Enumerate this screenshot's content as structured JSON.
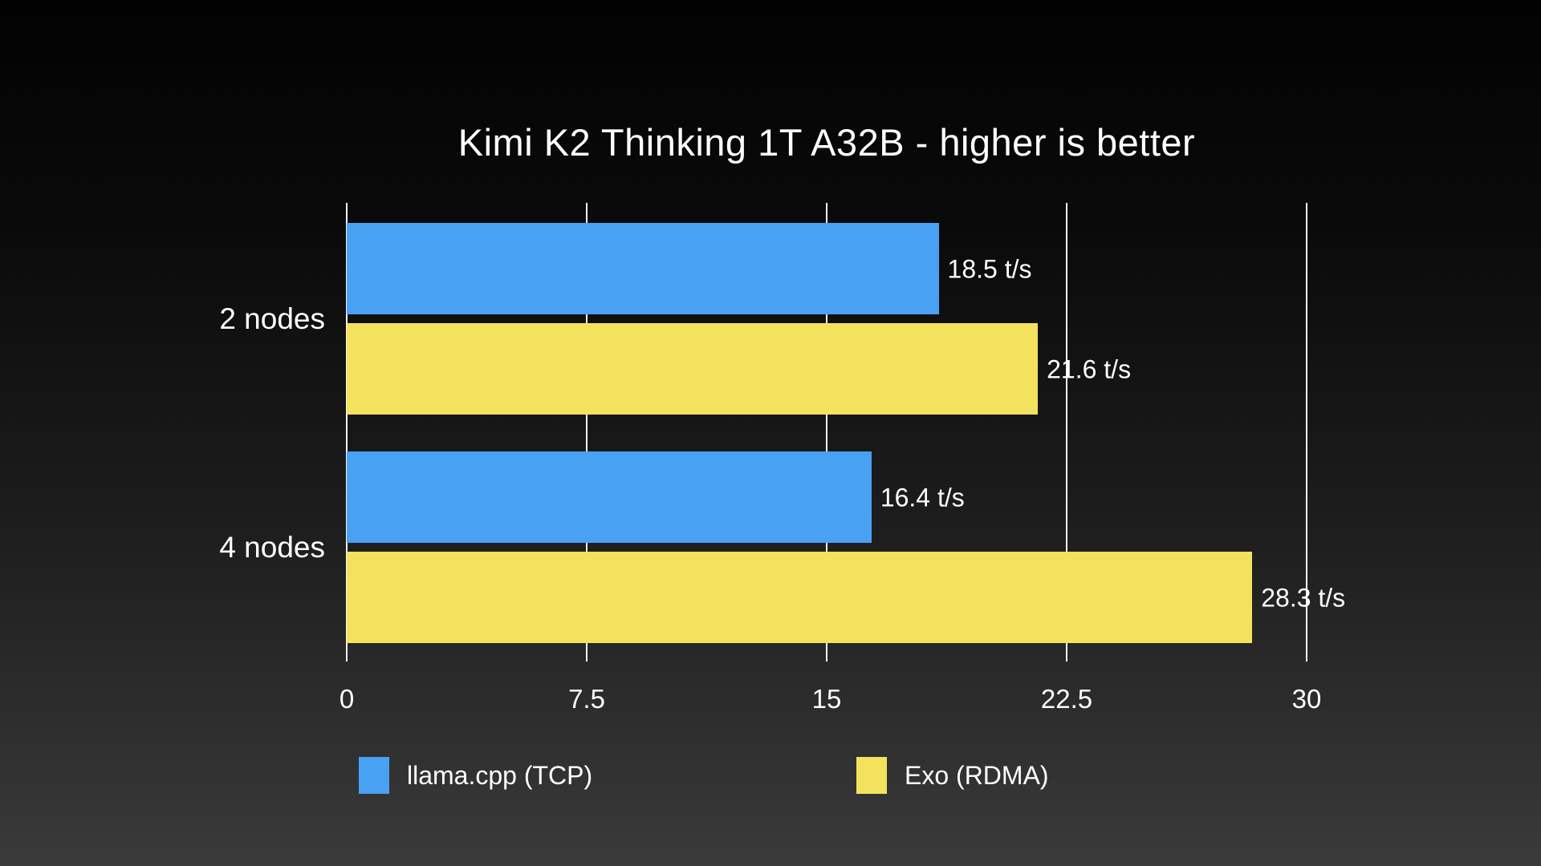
{
  "title": "Kimi K2 Thinking 1T A32B - higher is better",
  "colors": {
    "background_top": "#020202",
    "background_bottom": "#3a3a3a",
    "bar_blue": "#49A1F4",
    "bar_yellow": "#F3E25E",
    "gridline": "#f7f7f7",
    "text": "#ffffff"
  },
  "chart_data": {
    "type": "bar",
    "orientation": "horizontal",
    "title": "Kimi K2 Thinking 1T A32B - higher is better",
    "categories": [
      "2 nodes",
      "4 nodes"
    ],
    "series": [
      {
        "name": "llama.cpp (TCP)",
        "color": "#49A1F4",
        "values": [
          18.5,
          16.4
        ],
        "value_labels": [
          "18.5 t/s",
          "16.4 t/s"
        ]
      },
      {
        "name": "Exo (RDMA)",
        "color": "#F3E25E",
        "values": [
          21.6,
          28.3
        ],
        "value_labels": [
          "21.6 t/s",
          "28.3 t/s"
        ]
      }
    ],
    "value_unit": "t/s",
    "xlim": [
      0,
      30
    ],
    "x_ticks": [
      0,
      7.5,
      15,
      22.5,
      30
    ],
    "x_tick_labels": [
      "0",
      "7.5",
      "15",
      "22.5",
      "30"
    ],
    "grid": "vertical",
    "legend_position": "bottom"
  },
  "legend": {
    "items": [
      {
        "label": "llama.cpp (TCP)",
        "color": "#49A1F4"
      },
      {
        "label": "Exo (RDMA)",
        "color": "#F3E25E"
      }
    ]
  }
}
